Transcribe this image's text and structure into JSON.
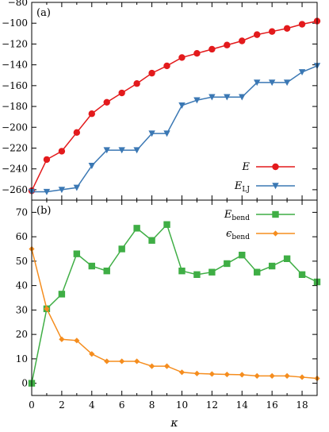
{
  "chart_data": [
    {
      "type": "line",
      "panel_label": "(a)",
      "x": [
        0,
        1,
        2,
        3,
        4,
        5,
        6,
        7,
        8,
        9,
        10,
        11,
        12,
        13,
        14,
        15,
        16,
        17,
        18,
        19
      ],
      "xlim": [
        0,
        19
      ],
      "ylim": [
        -270,
        -80
      ],
      "yticks": [
        -260,
        -240,
        -220,
        -200,
        -180,
        -160,
        -140,
        -120,
        -100,
        -80
      ],
      "legend_position": "bottom-right",
      "series": [
        {
          "name": "E",
          "name_base": "E",
          "name_sub": "",
          "color": "#e31a1c",
          "marker": "circle",
          "values": [
            -261,
            -231,
            -223,
            -205,
            -187,
            -176,
            -167,
            -158,
            -148,
            -141,
            -133,
            -129,
            -125,
            -121,
            -117,
            -111,
            -108,
            -105,
            -101,
            -98
          ]
        },
        {
          "name": "E_LJ",
          "name_base": "E",
          "name_sub": "LJ",
          "color": "#3b78b4",
          "marker": "triangle-down",
          "values": [
            -262,
            -262,
            -260,
            -258,
            -237,
            -222,
            -222,
            -222,
            -206,
            -206,
            -179,
            -174,
            -171,
            -171,
            -171,
            -157,
            -157,
            -157,
            -147,
            -141
          ]
        }
      ]
    },
    {
      "type": "line",
      "panel_label": "(b)",
      "x": [
        0,
        1,
        2,
        3,
        4,
        5,
        6,
        7,
        8,
        9,
        10,
        11,
        12,
        13,
        14,
        15,
        16,
        17,
        18,
        19
      ],
      "xlim": [
        0,
        19
      ],
      "xticks": [
        0,
        2,
        4,
        6,
        8,
        10,
        12,
        14,
        16,
        18
      ],
      "ylim": [
        -5,
        75
      ],
      "yticks": [
        0,
        10,
        20,
        30,
        40,
        50,
        60,
        70
      ],
      "xlabel": "κ",
      "legend_position": "top-right",
      "series": [
        {
          "name": "E_bend",
          "name_base": "E",
          "name_sub": "bend",
          "color": "#3fae45",
          "marker": "square",
          "values": [
            0,
            30.5,
            36.5,
            53,
            48,
            46,
            55,
            63.5,
            58.5,
            65,
            46,
            44.5,
            45.5,
            49,
            52.5,
            45.5,
            48,
            51,
            44.5,
            41.5
          ]
        },
        {
          "name": "ε_bend",
          "name_base": "ϵ",
          "name_sub": "bend",
          "color": "#f58d1e",
          "marker": "diamond",
          "values": [
            55,
            30.5,
            18,
            17.5,
            12,
            9,
            9,
            9,
            7,
            7,
            4.5,
            4,
            3.8,
            3.6,
            3.5,
            3,
            3,
            3,
            2.5,
            2
          ]
        }
      ]
    }
  ]
}
